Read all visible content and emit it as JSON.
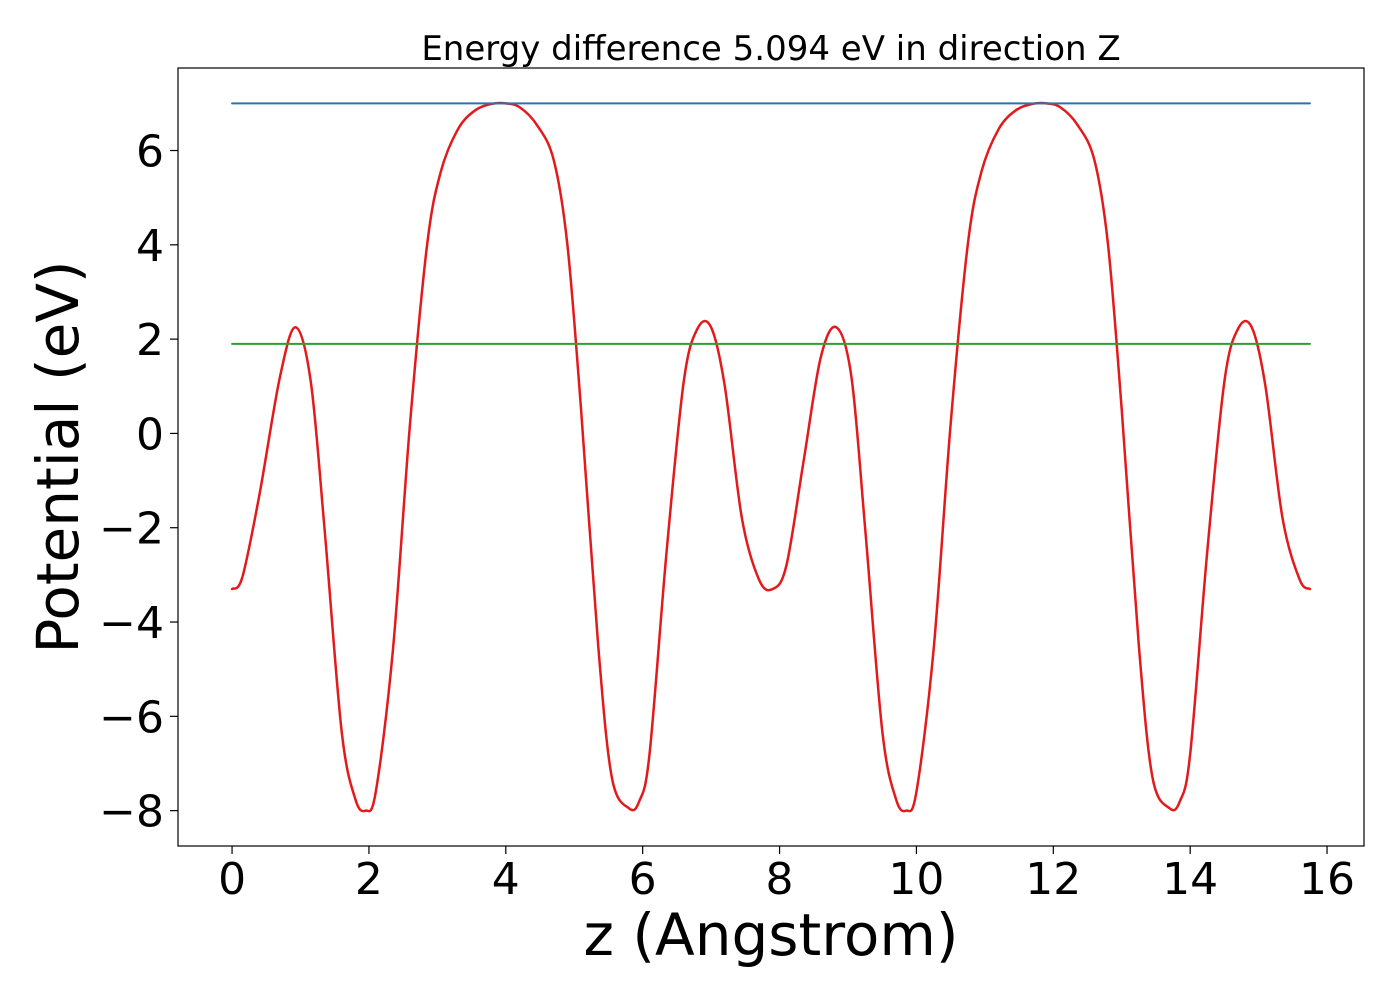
{
  "chart_data": {
    "type": "line",
    "title": "Energy difference 5.094 eV in direction Z",
    "xlabel": "z (Angstrom)",
    "ylabel": "Potential (eV)",
    "xlim": [
      -0.79,
      16.54
    ],
    "ylim": [
      -8.75,
      7.75
    ],
    "xticks": [
      0,
      2,
      4,
      6,
      8,
      10,
      12,
      14,
      16
    ],
    "xtick_labels": [
      "0",
      "2",
      "4",
      "6",
      "8",
      "10",
      "12",
      "14",
      "16"
    ],
    "yticks": [
      6,
      4,
      2,
      0,
      -2,
      -4,
      -6,
      -8
    ],
    "ytick_labels": [
      "6",
      "4",
      "2",
      "0",
      "−2",
      "−4",
      "−6",
      "−8"
    ],
    "grid": false,
    "series": [
      {
        "color": "#e31a1c",
        "style": "curve",
        "x": [
          0,
          0.15,
          0.4,
          0.7,
          0.93,
          1.15,
          1.35,
          1.6,
          1.8,
          1.95,
          2.1,
          2.35,
          2.6,
          2.85,
          3.05,
          3.3,
          3.55,
          3.8,
          4.0,
          4.2,
          4.45,
          4.7,
          4.9,
          5.1,
          5.35,
          5.55,
          5.8,
          5.95,
          6.1,
          6.35,
          6.6,
          6.8,
          7.0,
          7.2,
          7.45,
          7.7,
          7.9,
          8.1,
          8.35,
          8.6,
          8.83,
          9.05,
          9.25,
          9.5,
          9.7,
          9.85,
          10.0,
          10.25,
          10.5,
          10.75,
          10.95,
          11.2,
          11.45,
          11.7,
          11.9,
          12.1,
          12.35,
          12.6,
          12.8,
          13.0,
          13.25,
          13.45,
          13.7,
          13.85,
          14.0,
          14.25,
          14.5,
          14.7,
          14.9,
          15.1,
          15.35,
          15.6,
          15.75
        ],
        "y": [
          -3.3,
          -3.05,
          -1.3,
          1.2,
          2.25,
          1.1,
          -2.0,
          -6.3,
          -7.75,
          -8.0,
          -7.6,
          -4.6,
          0.2,
          4.0,
          5.55,
          6.45,
          6.85,
          6.99,
          7.0,
          6.92,
          6.55,
          5.8,
          4.0,
          0.5,
          -4.5,
          -7.3,
          -7.95,
          -7.8,
          -6.8,
          -2.5,
          1.1,
          2.22,
          2.25,
          1.0,
          -1.8,
          -3.1,
          -3.3,
          -2.8,
          -0.6,
          1.6,
          2.25,
          1.2,
          -2.0,
          -6.3,
          -7.75,
          -8.0,
          -7.6,
          -4.6,
          0.2,
          4.0,
          5.55,
          6.45,
          6.85,
          6.99,
          7.0,
          6.92,
          6.55,
          5.8,
          4.0,
          0.5,
          -4.5,
          -7.3,
          -7.95,
          -7.8,
          -6.8,
          -2.5,
          1.1,
          2.22,
          2.25,
          1.0,
          -1.8,
          -3.1,
          -3.3
        ]
      },
      {
        "color": "#1f77b4",
        "style": "straight",
        "x": [
          0,
          15.75
        ],
        "y": [
          7.0,
          7.0
        ]
      },
      {
        "color": "#2ca02c",
        "style": "straight",
        "x": [
          0,
          15.75
        ],
        "y": [
          1.9,
          1.9
        ]
      }
    ]
  }
}
